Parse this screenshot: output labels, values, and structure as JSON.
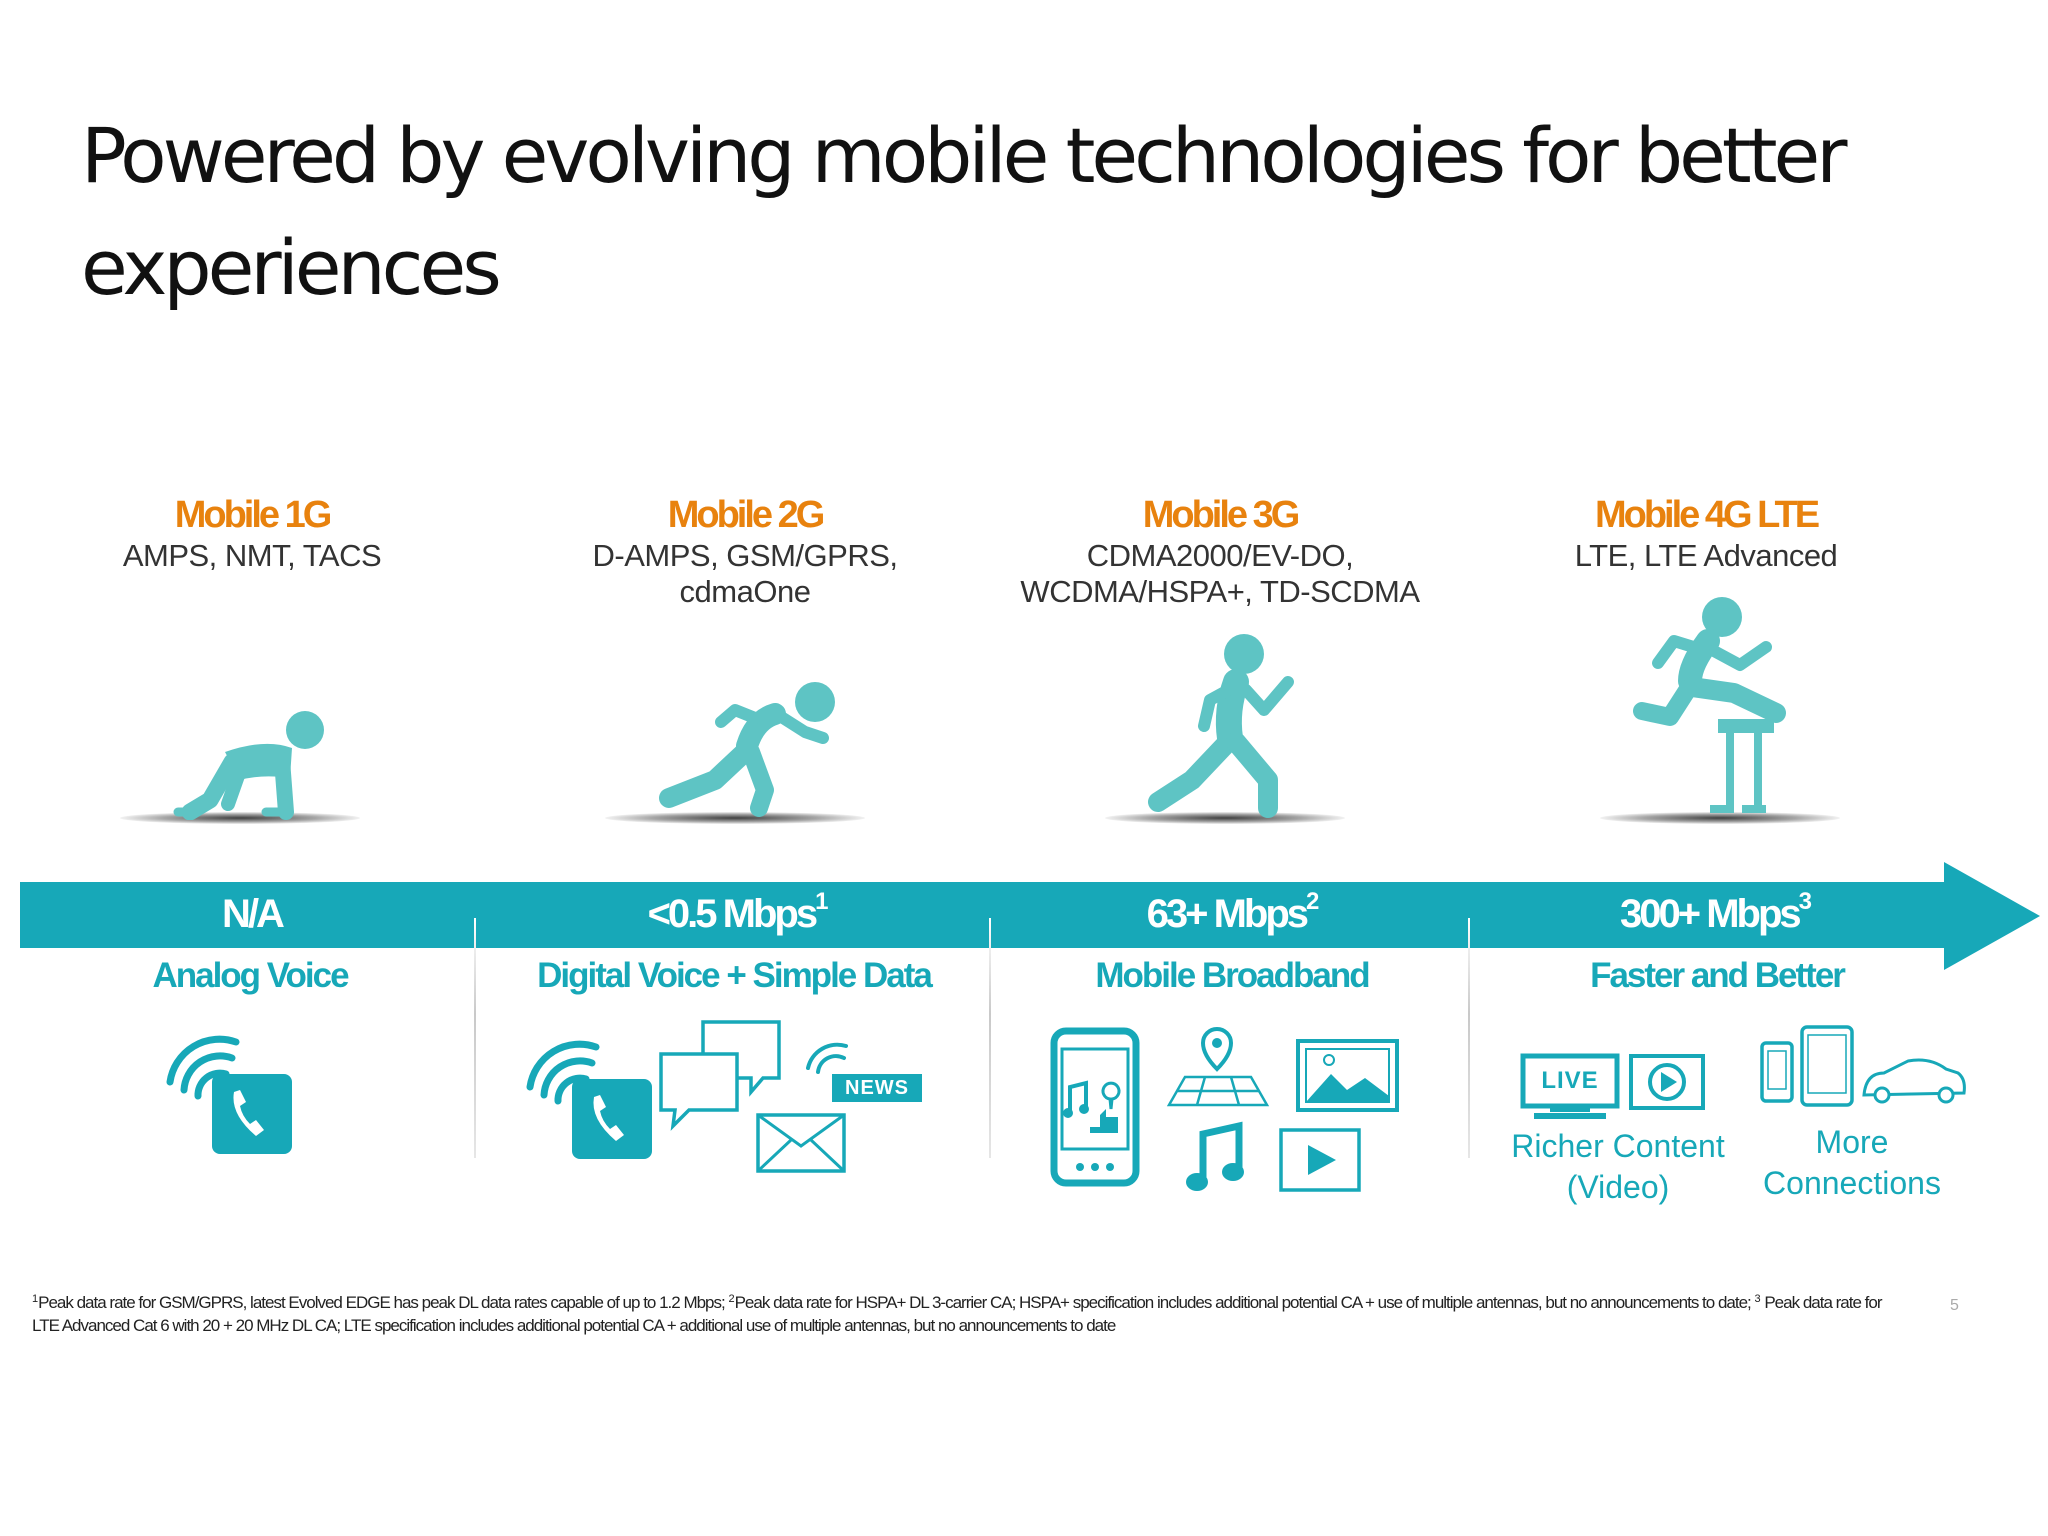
{
  "slide": {
    "title_line1": "Powered by evolving mobile technologies for better",
    "title_line2": "experiences",
    "page_number": "5"
  },
  "colors": {
    "teal": "#17a8b8",
    "orange": "#e8820e",
    "text": "#333333"
  },
  "generations": [
    {
      "name": "Mobile 1G",
      "tech_line1": "AMPS, NMT, TACS",
      "tech_line2": "",
      "rate": "N/A",
      "rate_sup": "",
      "label": "Analog Voice",
      "figure_icon": "crawling-person-icon"
    },
    {
      "name": "Mobile 2G",
      "tech_line1": "D-AMPS, GSM/GPRS,",
      "tech_line2": "cdmaOne",
      "rate": "<0.5 Mbps",
      "rate_sup": "1",
      "label": "Digital Voice + Simple Data",
      "figure_icon": "sprinting-start-person-icon"
    },
    {
      "name": "Mobile 3G",
      "tech_line1": "CDMA2000/EV-DO,",
      "tech_line2": "WCDMA/HSPA+, TD-SCDMA",
      "rate": "63+ Mbps",
      "rate_sup": "2",
      "label": "Mobile Broadband",
      "figure_icon": "running-person-icon"
    },
    {
      "name": "Mobile 4G LTE",
      "tech_line1": "LTE, LTE Advanced",
      "tech_line2": "",
      "rate": "300+ Mbps",
      "rate_sup": "3",
      "label": "Faster and Better",
      "figure_icon": "hurdling-person-icon"
    }
  ],
  "icons_2g": {
    "news_badge": "NEWS"
  },
  "icons_4g": {
    "live_badge": "LIVE",
    "richer_line1": "Richer Content",
    "richer_line2": "(Video)",
    "more_line1": "More",
    "more_line2": "Connections"
  },
  "footnote": {
    "sup1": "1",
    "text1": "Peak data rate for GSM/GPRS, latest Evolved EDGE has peak DL data rates capable of up to 1.2 Mbps; ",
    "sup2": "2",
    "text2": "Peak data rate for HSPA+ DL 3-carrier CA; HSPA+ specification includes additional potential CA + use of multiple antennas, but no announcements to date; ",
    "sup3": "3",
    "text3": " Peak data rate for  LTE Advanced Cat 6 with 20 + 20 MHz DL CA; LTE specification includes additional potential CA + additional use of multiple antennas, but no announcements to  date"
  }
}
